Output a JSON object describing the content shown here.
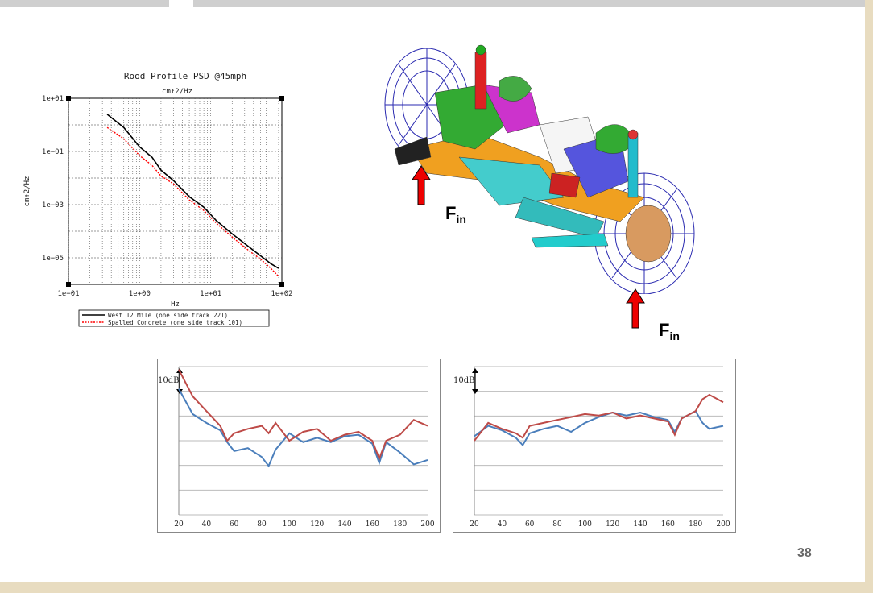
{
  "page_number": "38",
  "force_label": {
    "main": "F",
    "sub": "in"
  },
  "colors": {
    "red_arrow": "#ee0000",
    "frame": "#d8c8a0"
  },
  "chart_data": [
    {
      "type": "line",
      "title": "Rood Profile PSD @45mph",
      "subtitle": "cm↑2/Hz",
      "xlabel": "Hz",
      "ylabel": "cm↑2/Hz",
      "xscale": "log",
      "yscale": "log",
      "xlim": [
        0.1,
        100
      ],
      "ylim": [
        1e-06,
        10
      ],
      "xticks": [
        "1e−01",
        "1e+00",
        "1e+01",
        "1e+02"
      ],
      "yticks": [
        "1e+01",
        "1e−01",
        "1e−03",
        "1e−05"
      ],
      "grid": true,
      "legend_position": "bottom",
      "series": [
        {
          "name": "West 12 Mile (one side track 221)",
          "color": "#000000",
          "style": "solid",
          "x": [
            0.35,
            0.6,
            1.0,
            1.5,
            2.0,
            3.0,
            5.0,
            8.0,
            12.0,
            20.0,
            35.0,
            50.0,
            70.0,
            90.0
          ],
          "y": [
            2.5,
            0.8,
            0.15,
            0.06,
            0.02,
            0.008,
            0.002,
            0.0008,
            0.00025,
            8e-05,
            2.5e-05,
            1.2e-05,
            6e-06,
            4e-06
          ]
        },
        {
          "name": "Spalled Concrete (one side track 101)",
          "color": "#ff0000",
          "style": "dotted",
          "x": [
            0.35,
            0.6,
            1.0,
            1.5,
            2.0,
            3.0,
            5.0,
            8.0,
            12.0,
            20.0,
            35.0,
            50.0,
            70.0,
            90.0
          ],
          "y": [
            0.8,
            0.3,
            0.07,
            0.03,
            0.012,
            0.006,
            0.0015,
            0.0006,
            0.0002,
            6e-05,
            1.8e-05,
            9e-06,
            4e-06,
            2e-06
          ]
        }
      ]
    },
    {
      "type": "line",
      "x": [
        20,
        30,
        40,
        50,
        55,
        60,
        70,
        80,
        85,
        90,
        100,
        110,
        120,
        130,
        140,
        150,
        160,
        165,
        170,
        180,
        190,
        200
      ],
      "xlim": [
        20,
        200
      ],
      "xticks": [
        "20",
        "40",
        "60",
        "80",
        "100",
        "120",
        "140",
        "160",
        "180",
        "200"
      ],
      "scale_label": "10dB",
      "grid": true,
      "series": [
        {
          "color": "#4a7ebb",
          "y": [
            8.5,
            6.8,
            6.2,
            5.7,
            4.9,
            4.3,
            4.5,
            3.9,
            3.3,
            4.4,
            5.5,
            4.9,
            5.2,
            4.9,
            5.3,
            5.4,
            4.8,
            3.5,
            4.9,
            4.2,
            3.4,
            3.7
          ]
        },
        {
          "color": "#be4b48",
          "y": [
            9.8,
            8.0,
            7.0,
            6.0,
            5.0,
            5.5,
            5.8,
            6.0,
            5.5,
            6.2,
            5.0,
            5.6,
            5.8,
            5.0,
            5.4,
            5.6,
            5.0,
            3.8,
            5.0,
            5.4,
            6.4,
            6.0
          ]
        }
      ]
    },
    {
      "type": "line",
      "x": [
        20,
        30,
        40,
        50,
        55,
        60,
        70,
        80,
        90,
        100,
        110,
        120,
        130,
        140,
        150,
        160,
        165,
        170,
        180,
        185,
        190,
        200
      ],
      "xlim": [
        20,
        200
      ],
      "xticks": [
        "20",
        "40",
        "60",
        "80",
        "100",
        "120",
        "140",
        "160",
        "180",
        "200"
      ],
      "scale_label": "10dB",
      "grid": true,
      "series": [
        {
          "color": "#4a7ebb",
          "y": [
            5.3,
            6.0,
            5.7,
            5.2,
            4.7,
            5.5,
            5.8,
            6.0,
            5.6,
            6.2,
            6.6,
            6.9,
            6.7,
            6.9,
            6.6,
            6.4,
            5.6,
            6.5,
            7.0,
            6.2,
            5.8,
            6.0
          ]
        },
        {
          "color": "#be4b48",
          "y": [
            5.0,
            6.2,
            5.8,
            5.5,
            5.2,
            6.0,
            6.2,
            6.4,
            6.6,
            6.8,
            6.7,
            6.9,
            6.5,
            6.7,
            6.5,
            6.3,
            5.4,
            6.5,
            7.0,
            7.8,
            8.1,
            7.6
          ]
        }
      ]
    }
  ]
}
